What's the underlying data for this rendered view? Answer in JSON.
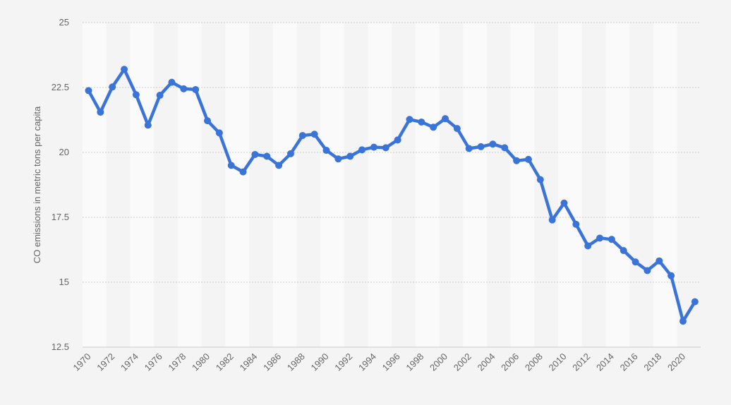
{
  "chart_data": {
    "type": "line",
    "title": "",
    "xlabel": "",
    "ylabel": "CO emissions in metric tons per capita",
    "x": [
      1970,
      1971,
      1972,
      1973,
      1974,
      1975,
      1976,
      1977,
      1978,
      1979,
      1980,
      1981,
      1982,
      1983,
      1984,
      1985,
      1986,
      1987,
      1988,
      1989,
      1990,
      1991,
      1992,
      1993,
      1994,
      1995,
      1996,
      1997,
      1998,
      1999,
      2000,
      2001,
      2002,
      2003,
      2004,
      2005,
      2006,
      2007,
      2008,
      2009,
      2010,
      2011,
      2012,
      2013,
      2014,
      2015,
      2016,
      2017,
      2018,
      2019,
      2020,
      2021
    ],
    "x_tick_labels": [
      "1970",
      "1972",
      "1974",
      "1976",
      "1978",
      "1980",
      "1982",
      "1984",
      "1986",
      "1988",
      "1990",
      "1992",
      "1994",
      "1996",
      "1998",
      "2000",
      "2002",
      "2004",
      "2006",
      "2008",
      "2010",
      "2012",
      "2014",
      "2016",
      "2018",
      "2020"
    ],
    "y_ticks": [
      12.5,
      15,
      17.5,
      20,
      22.5,
      25
    ],
    "y_tick_labels": [
      "12.5",
      "15",
      "17.5",
      "20",
      "22.5",
      "25"
    ],
    "ylim": [
      12.5,
      25
    ],
    "grid": true,
    "series": [
      {
        "values": [
          22.38,
          21.55,
          22.52,
          23.2,
          22.22,
          21.05,
          22.2,
          22.7,
          22.45,
          22.42,
          21.22,
          20.75,
          19.5,
          19.25,
          19.92,
          19.85,
          19.5,
          19.95,
          20.65,
          20.7,
          20.08,
          19.75,
          19.85,
          20.1,
          20.2,
          20.18,
          20.48,
          21.27,
          21.17,
          20.97,
          21.3,
          20.92,
          20.15,
          20.22,
          20.32,
          20.18,
          19.68,
          19.73,
          18.95,
          17.4,
          18.05,
          17.23,
          16.4,
          16.7,
          16.65,
          16.22,
          15.78,
          15.45,
          15.82,
          15.25,
          13.5,
          14.25
        ]
      }
    ],
    "colors": {
      "line": "#3b74d9",
      "band": "#fafafa",
      "background": "#f4f4f4",
      "grid": "#cccccc",
      "text": "#666666"
    }
  }
}
